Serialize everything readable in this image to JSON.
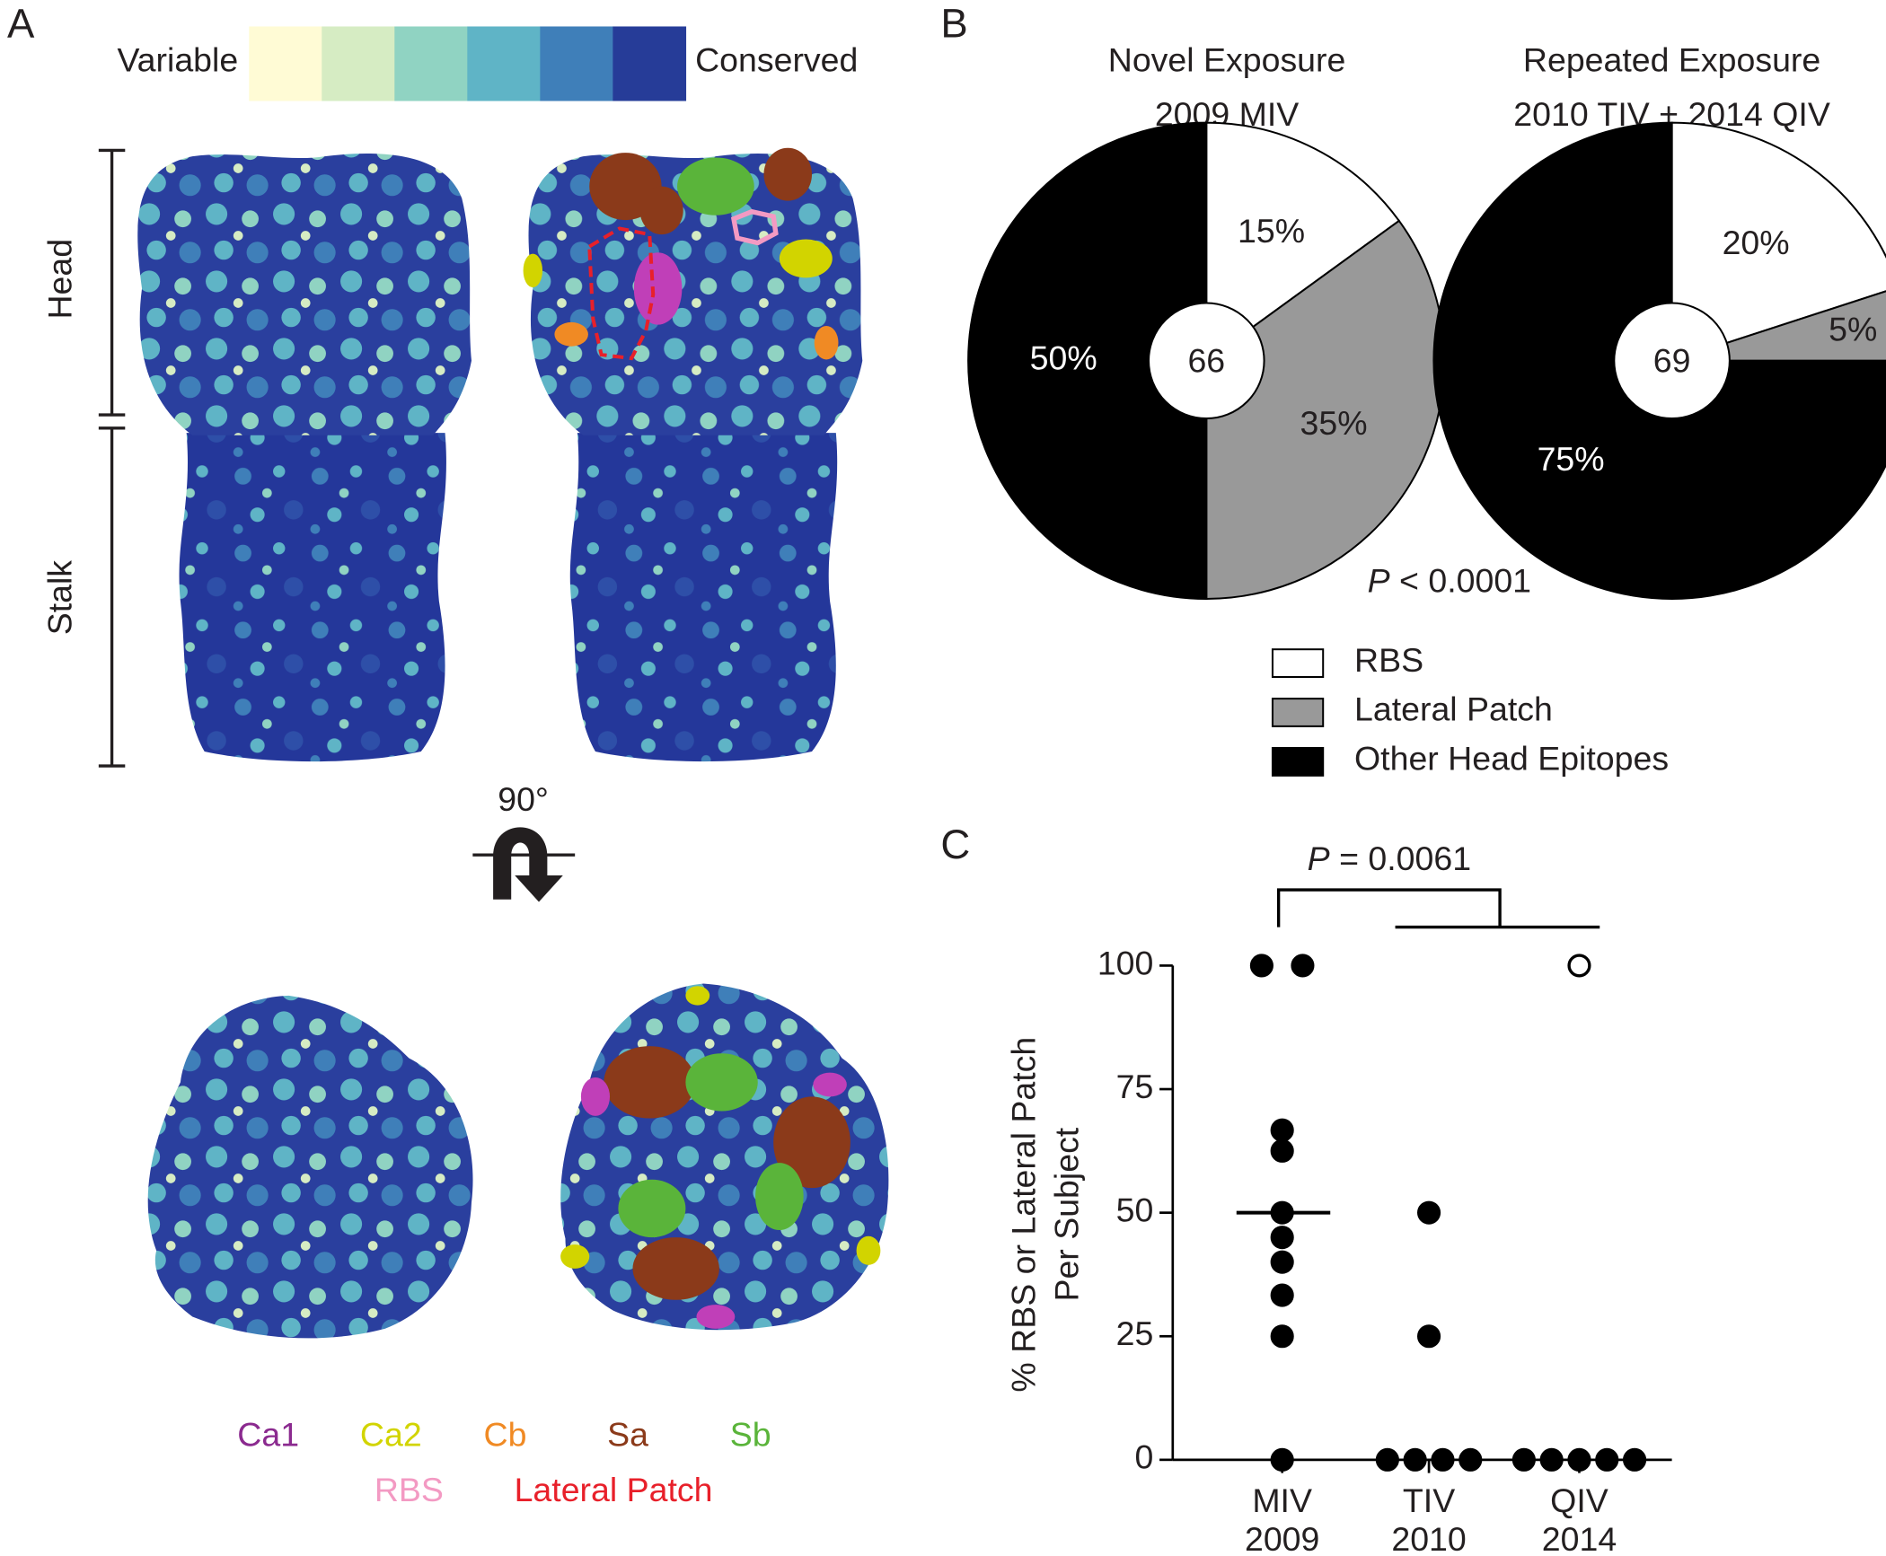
{
  "panel_a": {
    "label": "A",
    "color_scale": {
      "low": "Variable",
      "high": "Conserved",
      "colors": [
        "#fffbd5",
        "#d6ecc3",
        "#90d3c2",
        "#5fb4c6",
        "#3f7fb9",
        "#263c98"
      ]
    },
    "regions": [
      "Head",
      "Stalk"
    ],
    "rotation": "90°",
    "legend": [
      {
        "name": "Ca1",
        "color": "#8b2a8f"
      },
      {
        "name": "Ca2",
        "color": "#d2d400"
      },
      {
        "name": "Cb",
        "color": "#f08a24"
      },
      {
        "name": "Sa",
        "color": "#8b3a1a"
      },
      {
        "name": "Sb",
        "color": "#5ab43a"
      },
      {
        "name": "RBS",
        "color": "#f39ac3"
      },
      {
        "name": "Lateral Patch",
        "color": "#e8202a"
      }
    ]
  },
  "chart_data": [
    {
      "type": "pie",
      "panel": "B",
      "categories": [
        "RBS",
        "Lateral Patch",
        "Other Head Epitopes"
      ],
      "colors": [
        "#ffffff",
        "#999999",
        "#000000"
      ],
      "pies": [
        {
          "title": [
            "Novel Exposure",
            "2009 MIV"
          ],
          "center_label": 66,
          "values": [
            15,
            35,
            50
          ],
          "value_labels": [
            "15%",
            "35%",
            "50%"
          ]
        },
        {
          "title": [
            "Repeated Exposure",
            "2010 TIV + 2014 QIV"
          ],
          "center_label": 69,
          "values": [
            20,
            5,
            75
          ],
          "value_labels": [
            "20%",
            "5%",
            "75%"
          ]
        }
      ],
      "p_value": {
        "symbol": "P",
        "text": "< 0.0001"
      }
    },
    {
      "type": "strip",
      "panel": "C",
      "ylabel": [
        "% RBS or Lateral Patch",
        "Per Subject"
      ],
      "categories": [
        "MIV",
        "TIV",
        "QIV"
      ],
      "category_years": [
        "2009",
        "2010",
        "2014"
      ],
      "ylim": [
        0,
        100
      ],
      "yticks": [
        0,
        25,
        50,
        75,
        100
      ],
      "color": "#000000",
      "groups": [
        {
          "values": [
            100,
            100,
            66.7,
            62.5,
            50,
            45,
            40,
            33.3,
            25,
            0
          ],
          "median": 50
        },
        {
          "values": [
            50,
            25,
            0,
            0,
            0,
            0
          ]
        },
        {
          "values": [
            100,
            0,
            0,
            0,
            0,
            0
          ],
          "marker_fill": [
            "#ffffff",
            "#000000",
            "#000000",
            "#000000",
            "#000000",
            "#000000"
          ]
        }
      ],
      "comparison": {
        "symbol": "P",
        "text": "= 0.0061"
      }
    }
  ]
}
